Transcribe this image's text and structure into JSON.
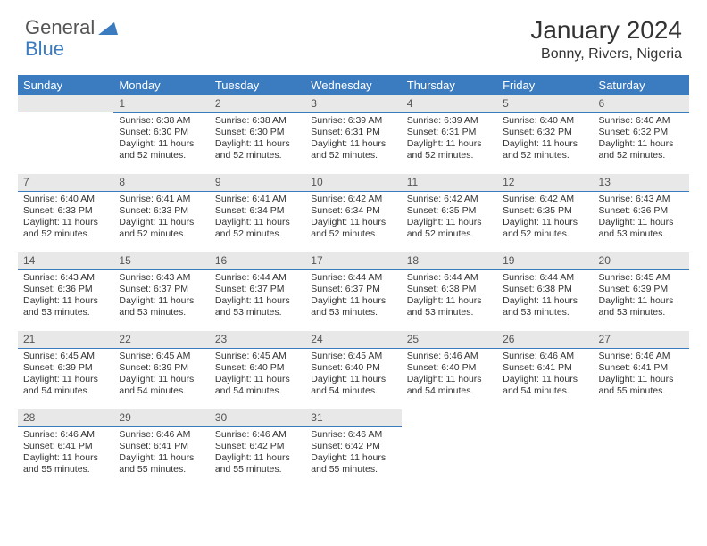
{
  "logo": {
    "general": "General",
    "blue": "Blue"
  },
  "title": "January 2024",
  "location": "Bonny, Rivers, Nigeria",
  "colors": {
    "header_bg": "#3b7bbf",
    "header_text": "#ffffff",
    "daynum_bg": "#e8e8e8",
    "border": "#3b7bbf",
    "text": "#333333"
  },
  "weekdays": [
    "Sunday",
    "Monday",
    "Tuesday",
    "Wednesday",
    "Thursday",
    "Friday",
    "Saturday"
  ],
  "weeks": [
    [
      null,
      {
        "n": "1",
        "sr": "Sunrise: 6:38 AM",
        "ss": "Sunset: 6:30 PM",
        "dl": "Daylight: 11 hours and 52 minutes."
      },
      {
        "n": "2",
        "sr": "Sunrise: 6:38 AM",
        "ss": "Sunset: 6:30 PM",
        "dl": "Daylight: 11 hours and 52 minutes."
      },
      {
        "n": "3",
        "sr": "Sunrise: 6:39 AM",
        "ss": "Sunset: 6:31 PM",
        "dl": "Daylight: 11 hours and 52 minutes."
      },
      {
        "n": "4",
        "sr": "Sunrise: 6:39 AM",
        "ss": "Sunset: 6:31 PM",
        "dl": "Daylight: 11 hours and 52 minutes."
      },
      {
        "n": "5",
        "sr": "Sunrise: 6:40 AM",
        "ss": "Sunset: 6:32 PM",
        "dl": "Daylight: 11 hours and 52 minutes."
      },
      {
        "n": "6",
        "sr": "Sunrise: 6:40 AM",
        "ss": "Sunset: 6:32 PM",
        "dl": "Daylight: 11 hours and 52 minutes."
      }
    ],
    [
      {
        "n": "7",
        "sr": "Sunrise: 6:40 AM",
        "ss": "Sunset: 6:33 PM",
        "dl": "Daylight: 11 hours and 52 minutes."
      },
      {
        "n": "8",
        "sr": "Sunrise: 6:41 AM",
        "ss": "Sunset: 6:33 PM",
        "dl": "Daylight: 11 hours and 52 minutes."
      },
      {
        "n": "9",
        "sr": "Sunrise: 6:41 AM",
        "ss": "Sunset: 6:34 PM",
        "dl": "Daylight: 11 hours and 52 minutes."
      },
      {
        "n": "10",
        "sr": "Sunrise: 6:42 AM",
        "ss": "Sunset: 6:34 PM",
        "dl": "Daylight: 11 hours and 52 minutes."
      },
      {
        "n": "11",
        "sr": "Sunrise: 6:42 AM",
        "ss": "Sunset: 6:35 PM",
        "dl": "Daylight: 11 hours and 52 minutes."
      },
      {
        "n": "12",
        "sr": "Sunrise: 6:42 AM",
        "ss": "Sunset: 6:35 PM",
        "dl": "Daylight: 11 hours and 52 minutes."
      },
      {
        "n": "13",
        "sr": "Sunrise: 6:43 AM",
        "ss": "Sunset: 6:36 PM",
        "dl": "Daylight: 11 hours and 53 minutes."
      }
    ],
    [
      {
        "n": "14",
        "sr": "Sunrise: 6:43 AM",
        "ss": "Sunset: 6:36 PM",
        "dl": "Daylight: 11 hours and 53 minutes."
      },
      {
        "n": "15",
        "sr": "Sunrise: 6:43 AM",
        "ss": "Sunset: 6:37 PM",
        "dl": "Daylight: 11 hours and 53 minutes."
      },
      {
        "n": "16",
        "sr": "Sunrise: 6:44 AM",
        "ss": "Sunset: 6:37 PM",
        "dl": "Daylight: 11 hours and 53 minutes."
      },
      {
        "n": "17",
        "sr": "Sunrise: 6:44 AM",
        "ss": "Sunset: 6:37 PM",
        "dl": "Daylight: 11 hours and 53 minutes."
      },
      {
        "n": "18",
        "sr": "Sunrise: 6:44 AM",
        "ss": "Sunset: 6:38 PM",
        "dl": "Daylight: 11 hours and 53 minutes."
      },
      {
        "n": "19",
        "sr": "Sunrise: 6:44 AM",
        "ss": "Sunset: 6:38 PM",
        "dl": "Daylight: 11 hours and 53 minutes."
      },
      {
        "n": "20",
        "sr": "Sunrise: 6:45 AM",
        "ss": "Sunset: 6:39 PM",
        "dl": "Daylight: 11 hours and 53 minutes."
      }
    ],
    [
      {
        "n": "21",
        "sr": "Sunrise: 6:45 AM",
        "ss": "Sunset: 6:39 PM",
        "dl": "Daylight: 11 hours and 54 minutes."
      },
      {
        "n": "22",
        "sr": "Sunrise: 6:45 AM",
        "ss": "Sunset: 6:39 PM",
        "dl": "Daylight: 11 hours and 54 minutes."
      },
      {
        "n": "23",
        "sr": "Sunrise: 6:45 AM",
        "ss": "Sunset: 6:40 PM",
        "dl": "Daylight: 11 hours and 54 minutes."
      },
      {
        "n": "24",
        "sr": "Sunrise: 6:45 AM",
        "ss": "Sunset: 6:40 PM",
        "dl": "Daylight: 11 hours and 54 minutes."
      },
      {
        "n": "25",
        "sr": "Sunrise: 6:46 AM",
        "ss": "Sunset: 6:40 PM",
        "dl": "Daylight: 11 hours and 54 minutes."
      },
      {
        "n": "26",
        "sr": "Sunrise: 6:46 AM",
        "ss": "Sunset: 6:41 PM",
        "dl": "Daylight: 11 hours and 54 minutes."
      },
      {
        "n": "27",
        "sr": "Sunrise: 6:46 AM",
        "ss": "Sunset: 6:41 PM",
        "dl": "Daylight: 11 hours and 55 minutes."
      }
    ],
    [
      {
        "n": "28",
        "sr": "Sunrise: 6:46 AM",
        "ss": "Sunset: 6:41 PM",
        "dl": "Daylight: 11 hours and 55 minutes."
      },
      {
        "n": "29",
        "sr": "Sunrise: 6:46 AM",
        "ss": "Sunset: 6:41 PM",
        "dl": "Daylight: 11 hours and 55 minutes."
      },
      {
        "n": "30",
        "sr": "Sunrise: 6:46 AM",
        "ss": "Sunset: 6:42 PM",
        "dl": "Daylight: 11 hours and 55 minutes."
      },
      {
        "n": "31",
        "sr": "Sunrise: 6:46 AM",
        "ss": "Sunset: 6:42 PM",
        "dl": "Daylight: 11 hours and 55 minutes."
      },
      null,
      null,
      null
    ]
  ]
}
